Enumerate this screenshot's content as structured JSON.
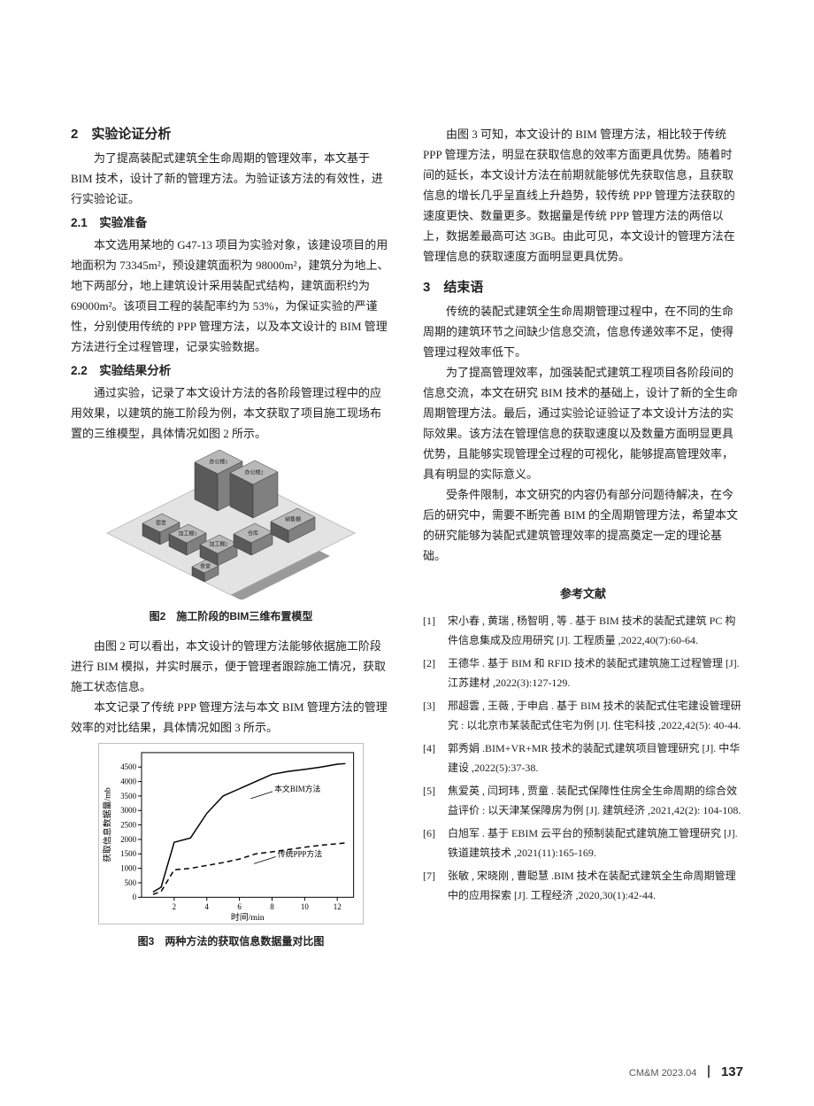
{
  "col_left": {
    "h2_1": "2　实验论证分析",
    "p1": "为了提高装配式建筑全生命周期的管理效率，本文基于 BIM 技术，设计了新的管理方法。为验证该方法的有效性，进行实验论证。",
    "h3_1": "2.1　实验准备",
    "p2": "本文选用某地的 G47-13 项目为实验对象，该建设项目的用地面积为 73345m²，预设建筑面积为 98000m²，建筑分为地上、地下两部分，地上建筑设计采用装配式结构，建筑面积约为 69000m²。该项目工程的装配率约为 53%，为保证实验的严谨性，分别使用传统的 PPP 管理方法，以及本文设计的 BIM 管理方法进行全过程管理，记录实验数据。",
    "h3_2": "2.2　实验结果分析",
    "p3": "通过实验，记录了本文设计方法的各阶段管理过程中的应用效果，以建筑的施工阶段为例，本文获取了项目施工现场布置的三维模型，具体情况如图 2 所示。",
    "fig2_caption": "图2　施工阶段的BIM三维布置模型",
    "p4": "由图 2 可以看出，本文设计的管理方法能够依据施工阶段进行 BIM 模拟，并实时展示，便于管理者跟踪施工情况，获取施工状态信息。",
    "p5": "本文记录了传统 PPP 管理方法与本文 BIM 管理方法的管理效率的对比结果，具体情况如图 3 所示。",
    "fig3_caption": "图3　两种方法的获取信息数据量对比图",
    "fig2": {
      "building_labels": [
        "办公楼1",
        "办公楼2",
        "加工棚1",
        "加工棚2",
        "仓库",
        "销售棚",
        "食堂",
        "宿舍"
      ],
      "ground_fill": "#e3e3e3",
      "ground_stroke": "#bdbdbd",
      "building_fill": "#808080",
      "building_top": "#b8b8b8",
      "building_side": "#5a5a5a",
      "line_color": "#333333"
    },
    "chart": {
      "type": "line",
      "xlabel": "时间/min",
      "ylabel": "获取信息数据量/mb",
      "label_fontsize": 10,
      "tick_fontsize": 9,
      "xlim": [
        0,
        13
      ],
      "ylim": [
        0,
        5000
      ],
      "xticks": [
        2,
        4,
        6,
        8,
        10,
        12
      ],
      "yticks": [
        0,
        500,
        1000,
        1500,
        2000,
        2500,
        3000,
        3500,
        4000,
        4500
      ],
      "grid": false,
      "border_color": "#000000",
      "line_width": 1.5,
      "series": [
        {
          "name": "本文BIM方法",
          "dash": "solid",
          "color": "#000000",
          "x": [
            0.7,
            1.2,
            2,
            3,
            4,
            5,
            6,
            7,
            8,
            9,
            10,
            11,
            12,
            12.5
          ],
          "y": [
            180,
            350,
            1900,
            2050,
            2900,
            3500,
            3750,
            4000,
            4250,
            4350,
            4420,
            4500,
            4600,
            4620
          ],
          "label_xy": [
            8.3,
            3350
          ]
        },
        {
          "name": "传统PPP方法",
          "dash": "6,4",
          "color": "#000000",
          "x": [
            0.7,
            1.2,
            2,
            3,
            4,
            5,
            6,
            7,
            8,
            9,
            10,
            11,
            12,
            12.5
          ],
          "y": [
            100,
            200,
            950,
            1000,
            1100,
            1200,
            1320,
            1500,
            1570,
            1650,
            1730,
            1800,
            1850,
            1880
          ],
          "label_xy": [
            8.5,
            1100
          ]
        }
      ]
    }
  },
  "col_right": {
    "p1": "由图 3 可知，本文设计的 BIM 管理方法，相比较于传统 PPP 管理方法，明显在获取信息的效率方面更具优势。随着时间的延长，本文设计方法在前期就能够优先获取信息，且获取信息的增长几乎呈直线上升趋势，较传统 PPP 管理方法获取的速度更快、数量更多。数据量是传统 PPP 管理方法的两倍以上，数据差最高可达 3GB。由此可见，本文设计的管理方法在管理信息的获取速度方面明显更具优势。",
    "h2": "3　结束语",
    "p2": "传统的装配式建筑全生命周期管理过程中，在不同的生命周期的建筑环节之间缺少信息交流，信息传递效率不足，使得管理过程效率低下。",
    "p3": "为了提高管理效率，加强装配式建筑工程项目各阶段间的信息交流，本文在研究 BIM 技术的基础上，设计了新的全生命周期管理方法。最后，通过实验论证验证了本文设计方法的实际效果。该方法在管理信息的获取速度以及数量方面明显更具优势，且能够实现管理全过程的可视化，能够提高管理效率，具有明显的实际意义。",
    "p4": "受条件限制，本文研究的内容仍有部分问题待解决，在今后的研究中，需要不断完善 BIM 的全周期管理方法，希望本文的研究能够为装配式建筑管理效率的提高奠定一定的理论基础。",
    "ref_head": "参考文献",
    "refs": [
      {
        "n": "[1]",
        "t": "宋小春 , 黄瑞 , 杨智明 , 等 . 基于 BIM 技术的装配式建筑 PC 构件信息集成及应用研究 [J]. 工程质量 ,2022,40(7):60-64."
      },
      {
        "n": "[2]",
        "t": "王德华 . 基于 BIM 和 RFID 技术的装配式建筑施工过程管理 [J]. 江苏建材 ,2022(3):127-129."
      },
      {
        "n": "[3]",
        "t": "邢超雲 , 王薇 , 于申启 . 基于 BIM 技术的装配式住宅建设管理研究 : 以北京市某装配式住宅为例 [J]. 住宅科技 ,2022,42(5): 40-44."
      },
      {
        "n": "[4]",
        "t": "郭秀娟 .BIM+VR+MR 技术的装配式建筑项目管理研究 [J]. 中华建设 ,2022(5):37-38."
      },
      {
        "n": "[5]",
        "t": "焦爱英 , 闫珂玮 , 贾童 . 装配式保障性住房全生命周期的综合效益评价 : 以天津某保障房为例 [J]. 建筑经济 ,2021,42(2): 104-108."
      },
      {
        "n": "[6]",
        "t": "白旭军 . 基于 EBIM 云平台的预制装配式建筑施工管理研究 [J]. 铁道建筑技术 ,2021(11):165-169."
      },
      {
        "n": "[7]",
        "t": "张敏 , 宋晓刚 , 曹聪慧 .BIM 技术在装配式建筑全生命周期管理中的应用探索 [J]. 工程经济 ,2020,30(1):42-44."
      }
    ]
  },
  "footer": {
    "issue": "CM&M 2023.04",
    "page": "137"
  }
}
